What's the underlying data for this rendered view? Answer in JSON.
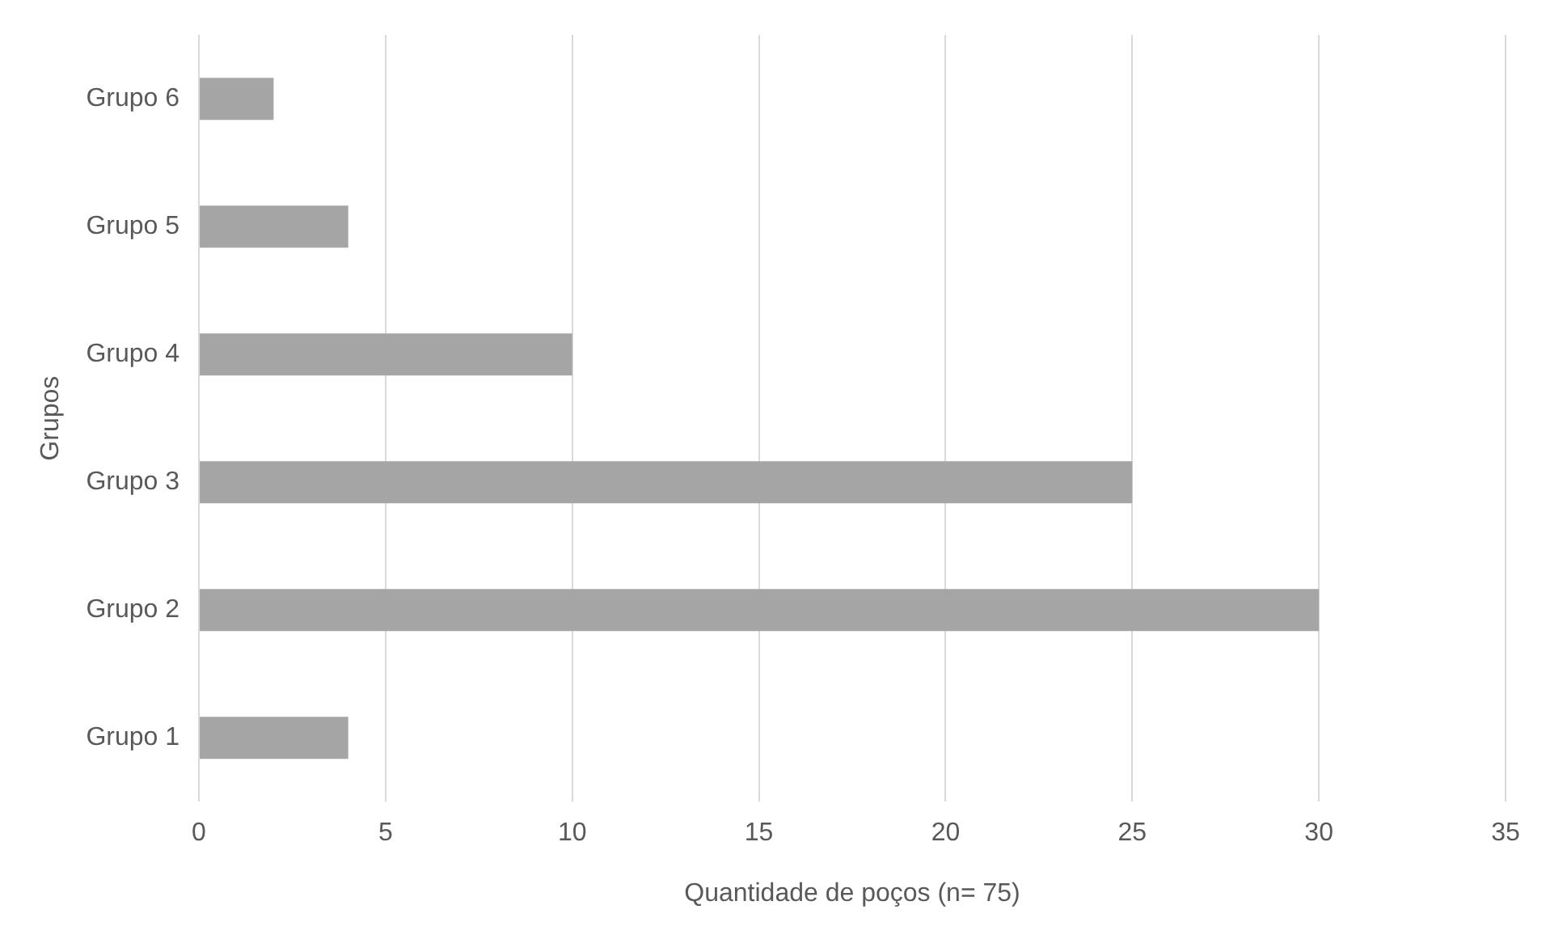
{
  "chart_data": {
    "type": "bar",
    "orientation": "horizontal",
    "xlabel": "Quantidade de poços (n= 75)",
    "ylabel": "Grupos",
    "categories": [
      "Grupo 6",
      "Grupo 5",
      "Grupo 4",
      "Grupo 3",
      "Grupo 2",
      "Grupo 1"
    ],
    "values": [
      2,
      4,
      10,
      25,
      30,
      4
    ],
    "color": "#a5a5a5",
    "xlim": [
      0,
      35
    ],
    "xticks": [
      0,
      5,
      10,
      15,
      20,
      25,
      30,
      35
    ],
    "grid": "x",
    "legend": false
  }
}
